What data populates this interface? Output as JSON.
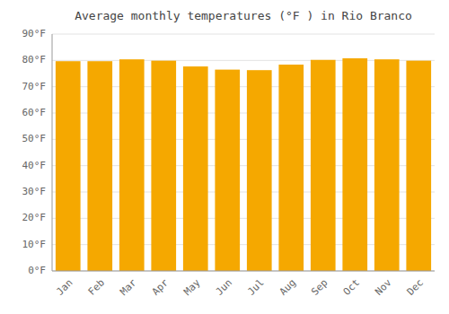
{
  "chart_data": {
    "type": "bar",
    "title": "Average monthly temperatures (°F ) in Rio Branco",
    "categories": [
      "Jan",
      "Feb",
      "Mar",
      "Apr",
      "May",
      "Jun",
      "Jul",
      "Aug",
      "Sep",
      "Oct",
      "Nov",
      "Dec"
    ],
    "values": [
      79.7,
      79.7,
      80.4,
      79.9,
      77.7,
      76.5,
      76.3,
      78.4,
      80.2,
      80.8,
      80.4,
      79.9
    ],
    "color": "#F5A800",
    "ylim": [
      0,
      90
    ],
    "yticks": [
      {
        "value": 0,
        "label": "0°F"
      },
      {
        "value": 10,
        "label": "10°F"
      },
      {
        "value": 20,
        "label": "20°F"
      },
      {
        "value": 30,
        "label": "30°F"
      },
      {
        "value": 40,
        "label": "40°F"
      },
      {
        "value": 50,
        "label": "50°F"
      },
      {
        "value": 60,
        "label": "60°F"
      },
      {
        "value": 70,
        "label": "70°F"
      },
      {
        "value": 80,
        "label": "80°F"
      },
      {
        "value": 90,
        "label": "90°F"
      }
    ],
    "grid": true
  }
}
